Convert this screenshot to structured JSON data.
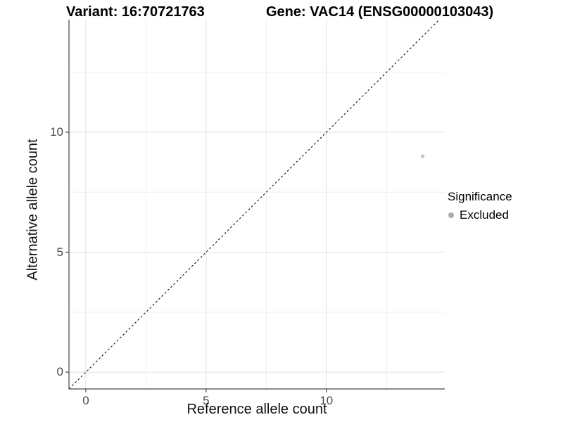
{
  "chart_data": {
    "type": "scatter",
    "titles": {
      "left": "Variant: 16:70721763",
      "right": "Gene: VAC14 (ENSG00000103043)"
    },
    "xlabel": "Reference allele count",
    "ylabel": "Alternative allele count",
    "xlim": [
      -0.7,
      14.92
    ],
    "ylim": [
      -0.7,
      14.69
    ],
    "x_ticks": {
      "major": [
        0,
        5,
        10
      ],
      "minor": [
        2.5,
        7.5,
        12.5
      ]
    },
    "y_ticks": {
      "major": [
        0,
        5,
        10
      ],
      "minor": [
        2.5,
        7.5,
        12.5
      ]
    },
    "grid": "major+minor",
    "points": [
      {
        "x": 14,
        "y": 9,
        "significance": "Excluded"
      }
    ],
    "reference_line": {
      "slope": 1,
      "intercept": 0,
      "style": "dashed"
    },
    "legend": {
      "position": "right",
      "title": "Significance",
      "entries": [
        {
          "label": "Excluded",
          "color": "#ababab"
        }
      ]
    },
    "colors": {
      "point": "#c4c4c4",
      "grid_major": "#e1e1e1",
      "grid_minor": "#eeeeee",
      "axis_line": "#474747",
      "tick_mark": "#474747",
      "tick_label": "#4a4a4a",
      "reference_line": "#000000",
      "title": "#000000"
    }
  }
}
